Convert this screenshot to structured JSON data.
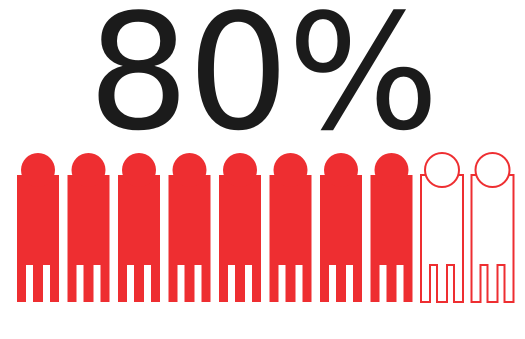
{
  "headline": {
    "value": "80%"
  },
  "pictogram": {
    "total": 10,
    "filled": 8,
    "fraction": 0.8,
    "icon": "person-icon",
    "filled_color": "#ee2e31",
    "outline_color": "#ee2e31",
    "empty_fill": "#ffffff"
  }
}
